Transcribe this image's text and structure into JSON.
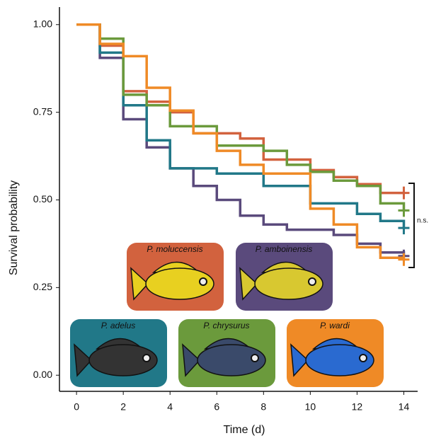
{
  "chart_data": {
    "type": "step",
    "xlabel": "Time (d)",
    "ylabel": "Survival probability",
    "annotation": "n.s.",
    "x": [
      0,
      1,
      2,
      3,
      4,
      5,
      6,
      7,
      8,
      9,
      10,
      11,
      12,
      13,
      14
    ],
    "series": [
      {
        "name": "P. moluccensis",
        "color": "#d2623e",
        "values": [
          1,
          0.94,
          0.81,
          0.78,
          0.75,
          0.69,
          0.69,
          0.675,
          0.615,
          0.615,
          0.585,
          0.565,
          0.545,
          0.52,
          0.52
        ]
      },
      {
        "name": "P. amboinensis",
        "color": "#5a4a7c",
        "values": [
          1,
          0.905,
          0.73,
          0.65,
          0.59,
          0.54,
          0.5,
          0.455,
          0.43,
          0.415,
          0.415,
          0.4,
          0.375,
          0.35,
          0.34
        ]
      },
      {
        "name": "P. adelus",
        "color": "#217888",
        "values": [
          1,
          0.92,
          0.77,
          0.67,
          0.59,
          0.59,
          0.575,
          0.575,
          0.54,
          0.54,
          0.49,
          0.49,
          0.46,
          0.44,
          0.42
        ]
      },
      {
        "name": "P. chrysurus",
        "color": "#6b9a3c",
        "values": [
          1,
          0.96,
          0.8,
          0.77,
          0.71,
          0.71,
          0.655,
          0.655,
          0.64,
          0.6,
          0.58,
          0.555,
          0.54,
          0.49,
          0.47
        ]
      },
      {
        "name": "P. wardi",
        "color": "#ef8a26",
        "values": [
          1,
          0.945,
          0.91,
          0.82,
          0.755,
          0.69,
          0.64,
          0.6,
          0.575,
          0.575,
          0.475,
          0.43,
          0.365,
          0.335,
          0.33
        ]
      }
    ],
    "xlim": [
      -0.73,
      15.5
    ],
    "ylim": [
      -0.046,
      1.05
    ],
    "xticks": [
      0,
      2,
      4,
      6,
      8,
      10,
      12,
      14
    ],
    "yticks": [
      {
        "value": 0,
        "label": "0.00"
      },
      {
        "value": 0.25,
        "label": "0.25"
      },
      {
        "value": 0.5,
        "label": "0.50"
      },
      {
        "value": 0.75,
        "label": "0.75"
      },
      {
        "value": 1,
        "label": "1.00"
      }
    ]
  }
}
